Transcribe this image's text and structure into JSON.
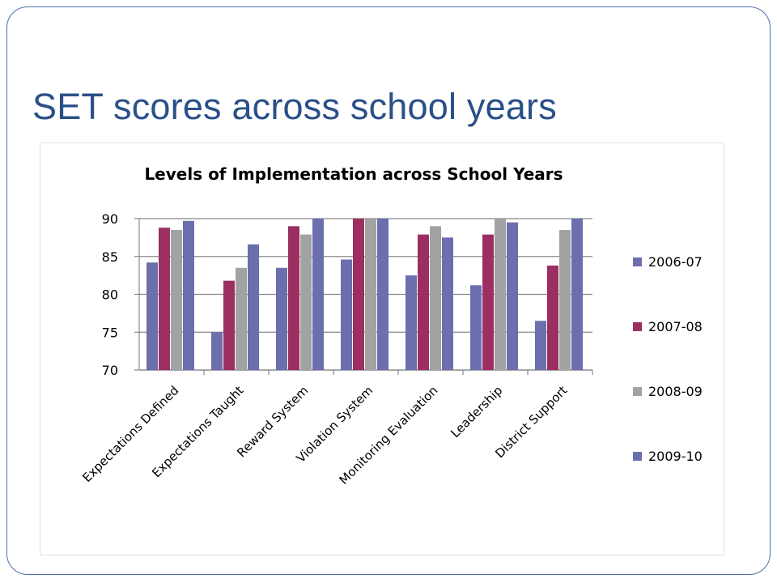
{
  "slide": {
    "title": "SET scores across school years"
  },
  "chart_data": {
    "type": "bar",
    "title": "Levels of Implementation across School Years",
    "xlabel": "",
    "ylabel": "",
    "ylim": [
      70,
      90
    ],
    "yticks": [
      "90",
      "85",
      "80",
      "75",
      "70"
    ],
    "grid": true,
    "legend_position": "right",
    "categories": [
      "Expectations Defined",
      "Expectations Taught",
      "Reward System",
      "Violation System",
      "Monitoring Evaluation",
      "Leadership",
      "District Support"
    ],
    "series": [
      {
        "name": "2006-07",
        "color": "#6b6fae",
        "values": [
          84.2,
          75.0,
          83.5,
          84.6,
          82.5,
          81.2,
          76.5
        ]
      },
      {
        "name": "2007-08",
        "color": "#9b2f62",
        "values": [
          88.8,
          81.8,
          89.0,
          90.0,
          87.9,
          87.9,
          83.8
        ]
      },
      {
        "name": "2008-09",
        "color": "#a2a2a2",
        "values": [
          88.5,
          83.5,
          87.9,
          90.0,
          89.0,
          90.0,
          88.5
        ]
      },
      {
        "name": "2009-10",
        "color": "#6b6fae",
        "values": [
          89.7,
          86.6,
          90.0,
          90.0,
          87.5,
          89.5,
          90.0
        ]
      }
    ]
  }
}
